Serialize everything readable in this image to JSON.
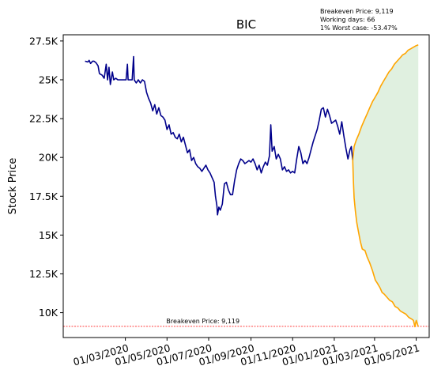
{
  "chart_data": {
    "type": "line",
    "title": "BIC",
    "ylabel": "Stock Price",
    "xlabel": "",
    "ylim": [
      8400,
      27900
    ],
    "xlim": [
      "2019-12-01",
      "2021-05-20"
    ],
    "yticks": [
      10000,
      12500,
      15000,
      17500,
      20000,
      22500,
      25000,
      27500
    ],
    "ytick_labels": [
      "10K",
      "12.5K",
      "15K",
      "17.5K",
      "20K",
      "22.5K",
      "25K",
      "27.5K"
    ],
    "xticks": [
      "2020-03-01",
      "2020-05-01",
      "2020-07-01",
      "2020-09-01",
      "2020-11-01",
      "2021-01-01",
      "2021-03-01",
      "2021-05-01"
    ],
    "xtick_labels": [
      "01/03/2020",
      "01/05/2020",
      "01/07/2020",
      "01/09/2020",
      "01/11/2020",
      "01/01/2021",
      "01/03/2021",
      "01/05/2021"
    ],
    "info_lines": [
      "Breakeven Price: 9,119",
      "Working days: 66",
      "1% Worst case: -53.47%"
    ],
    "breakeven": {
      "value": 9119,
      "label": "Breakeven Price: 9,119",
      "color": "#ff0000"
    },
    "colors": {
      "history": "#00008b",
      "projection": "#ffa500",
      "band": "#d8ecd8"
    },
    "series": [
      {
        "role": "history",
        "points": [
          [
            "2020-01-02",
            26200
          ],
          [
            "2020-01-06",
            26150
          ],
          [
            "2020-01-08",
            26250
          ],
          [
            "2020-01-10",
            26050
          ],
          [
            "2020-01-13",
            26200
          ],
          [
            "2020-01-15",
            26200
          ],
          [
            "2020-01-18",
            26100
          ],
          [
            "2020-01-21",
            25900
          ],
          [
            "2020-01-23",
            25400
          ],
          [
            "2020-01-27",
            25300
          ],
          [
            "2020-01-30",
            25100
          ],
          [
            "2020-02-02",
            26000
          ],
          [
            "2020-02-04",
            25000
          ],
          [
            "2020-02-06",
            25800
          ],
          [
            "2020-02-08",
            24700
          ],
          [
            "2020-02-11",
            25500
          ],
          [
            "2020-02-13",
            25000
          ],
          [
            "2020-02-16",
            25100
          ],
          [
            "2020-02-19",
            25000
          ],
          [
            "2020-02-23",
            25000
          ],
          [
            "2020-02-27",
            25000
          ],
          [
            "2020-03-02",
            25000
          ],
          [
            "2020-03-04",
            26000
          ],
          [
            "2020-03-05",
            25000
          ],
          [
            "2020-03-08",
            25000
          ],
          [
            "2020-03-11",
            25000
          ],
          [
            "2020-03-13",
            26500
          ],
          [
            "2020-03-14",
            25000
          ],
          [
            "2020-03-17",
            24800
          ],
          [
            "2020-03-20",
            25000
          ],
          [
            "2020-03-23",
            24800
          ],
          [
            "2020-03-26",
            25000
          ],
          [
            "2020-03-29",
            24900
          ],
          [
            "2020-04-01",
            24200
          ],
          [
            "2020-04-04",
            23800
          ],
          [
            "2020-04-07",
            23500
          ],
          [
            "2020-04-10",
            23000
          ],
          [
            "2020-04-13",
            23400
          ],
          [
            "2020-04-16",
            22800
          ],
          [
            "2020-04-19",
            23200
          ],
          [
            "2020-04-22",
            22700
          ],
          [
            "2020-04-25",
            22600
          ],
          [
            "2020-04-28",
            22400
          ],
          [
            "2020-05-01",
            21800
          ],
          [
            "2020-05-04",
            22100
          ],
          [
            "2020-05-07",
            21500
          ],
          [
            "2020-05-10",
            21600
          ],
          [
            "2020-05-13",
            21300
          ],
          [
            "2020-05-16",
            21200
          ],
          [
            "2020-05-19",
            21500
          ],
          [
            "2020-05-22",
            21000
          ],
          [
            "2020-05-25",
            21300
          ],
          [
            "2020-05-28",
            20800
          ],
          [
            "2020-05-31",
            20300
          ],
          [
            "2020-06-03",
            20500
          ],
          [
            "2020-06-06",
            19800
          ],
          [
            "2020-06-09",
            20000
          ],
          [
            "2020-06-12",
            19600
          ],
          [
            "2020-06-15",
            19400
          ],
          [
            "2020-06-18",
            19300
          ],
          [
            "2020-06-21",
            19100
          ],
          [
            "2020-06-24",
            19300
          ],
          [
            "2020-06-27",
            19500
          ],
          [
            "2020-06-30",
            19200
          ],
          [
            "2020-07-03",
            19000
          ],
          [
            "2020-07-06",
            18700
          ],
          [
            "2020-07-09",
            18400
          ],
          [
            "2020-07-11",
            17500
          ],
          [
            "2020-07-13",
            16900
          ],
          [
            "2020-07-14",
            16300
          ],
          [
            "2020-07-16",
            16800
          ],
          [
            "2020-07-18",
            16600
          ],
          [
            "2020-07-21",
            17000
          ],
          [
            "2020-07-24",
            18300
          ],
          [
            "2020-07-27",
            18400
          ],
          [
            "2020-07-30",
            17900
          ],
          [
            "2020-08-02",
            17600
          ],
          [
            "2020-08-05",
            17600
          ],
          [
            "2020-08-08",
            18500
          ],
          [
            "2020-08-11",
            19200
          ],
          [
            "2020-08-14",
            19600
          ],
          [
            "2020-08-17",
            19900
          ],
          [
            "2020-08-20",
            19800
          ],
          [
            "2020-08-23",
            19600
          ],
          [
            "2020-08-26",
            19700
          ],
          [
            "2020-08-29",
            19800
          ],
          [
            "2020-09-01",
            19700
          ],
          [
            "2020-09-04",
            19900
          ],
          [
            "2020-09-07",
            19600
          ],
          [
            "2020-09-10",
            19200
          ],
          [
            "2020-09-13",
            19500
          ],
          [
            "2020-09-16",
            19000
          ],
          [
            "2020-09-19",
            19400
          ],
          [
            "2020-09-22",
            19700
          ],
          [
            "2020-09-25",
            19500
          ],
          [
            "2020-09-28",
            20100
          ],
          [
            "2020-09-30",
            22100
          ],
          [
            "2020-10-02",
            20400
          ],
          [
            "2020-10-05",
            20700
          ],
          [
            "2020-10-08",
            19900
          ],
          [
            "2020-10-11",
            20200
          ],
          [
            "2020-10-14",
            19900
          ],
          [
            "2020-10-17",
            19200
          ],
          [
            "2020-10-20",
            19400
          ],
          [
            "2020-10-23",
            19100
          ],
          [
            "2020-10-26",
            19200
          ],
          [
            "2020-10-29",
            19000
          ],
          [
            "2020-11-01",
            19100
          ],
          [
            "2020-11-04",
            19000
          ],
          [
            "2020-11-07",
            19900
          ],
          [
            "2020-11-10",
            20700
          ],
          [
            "2020-11-13",
            20300
          ],
          [
            "2020-11-16",
            19600
          ],
          [
            "2020-11-19",
            19800
          ],
          [
            "2020-11-22",
            19600
          ],
          [
            "2020-11-25",
            20000
          ],
          [
            "2020-11-28",
            20500
          ],
          [
            "2020-12-01",
            21000
          ],
          [
            "2020-12-04",
            21400
          ],
          [
            "2020-12-07",
            21800
          ],
          [
            "2020-12-10",
            22400
          ],
          [
            "2020-12-13",
            23100
          ],
          [
            "2020-12-16",
            23200
          ],
          [
            "2020-12-19",
            22600
          ],
          [
            "2020-12-22",
            23100
          ],
          [
            "2020-12-25",
            22700
          ],
          [
            "2020-12-28",
            22200
          ],
          [
            "2020-12-31",
            22300
          ],
          [
            "2021-01-03",
            22400
          ],
          [
            "2021-01-06",
            22000
          ],
          [
            "2021-01-09",
            21500
          ],
          [
            "2021-01-12",
            22300
          ],
          [
            "2021-01-15",
            21400
          ],
          [
            "2021-01-18",
            20600
          ],
          [
            "2021-01-21",
            19900
          ],
          [
            "2021-01-24",
            20500
          ],
          [
            "2021-01-26",
            20700
          ],
          [
            "2021-01-28",
            19800
          ]
        ]
      },
      {
        "role": "upper-projection",
        "points": [
          [
            "2021-01-28",
            19800
          ],
          [
            "2021-01-30",
            20700
          ],
          [
            "2021-02-02",
            21100
          ],
          [
            "2021-02-06",
            21500
          ],
          [
            "2021-02-10",
            22000
          ],
          [
            "2021-02-14",
            22400
          ],
          [
            "2021-02-18",
            22800
          ],
          [
            "2021-02-22",
            23200
          ],
          [
            "2021-02-26",
            23600
          ],
          [
            "2021-03-02",
            23900
          ],
          [
            "2021-03-06",
            24200
          ],
          [
            "2021-03-10",
            24600
          ],
          [
            "2021-03-14",
            24900
          ],
          [
            "2021-03-18",
            25200
          ],
          [
            "2021-03-22",
            25500
          ],
          [
            "2021-03-26",
            25700
          ],
          [
            "2021-03-30",
            26000
          ],
          [
            "2021-04-03",
            26200
          ],
          [
            "2021-04-07",
            26400
          ],
          [
            "2021-04-11",
            26600
          ],
          [
            "2021-04-15",
            26700
          ],
          [
            "2021-04-19",
            26900
          ],
          [
            "2021-04-23",
            27000
          ],
          [
            "2021-04-27",
            27100
          ],
          [
            "2021-05-01",
            27200
          ],
          [
            "2021-05-04",
            27250
          ]
        ]
      },
      {
        "role": "lower-projection",
        "points": [
          [
            "2021-01-28",
            19800
          ],
          [
            "2021-01-29",
            18500
          ],
          [
            "2021-01-30",
            17400
          ],
          [
            "2021-02-01",
            16500
          ],
          [
            "2021-02-03",
            15800
          ],
          [
            "2021-02-05",
            15300
          ],
          [
            "2021-02-08",
            14600
          ],
          [
            "2021-02-11",
            14100
          ],
          [
            "2021-02-15",
            14000
          ],
          [
            "2021-02-18",
            13600
          ],
          [
            "2021-02-22",
            13200
          ],
          [
            "2021-02-26",
            12700
          ],
          [
            "2021-03-02",
            12100
          ],
          [
            "2021-03-05",
            11900
          ],
          [
            "2021-03-09",
            11600
          ],
          [
            "2021-03-12",
            11300
          ],
          [
            "2021-03-15",
            11200
          ],
          [
            "2021-03-19",
            11000
          ],
          [
            "2021-03-23",
            10800
          ],
          [
            "2021-03-27",
            10700
          ],
          [
            "2021-03-31",
            10400
          ],
          [
            "2021-04-04",
            10300
          ],
          [
            "2021-04-08",
            10100
          ],
          [
            "2021-04-12",
            10000
          ],
          [
            "2021-04-16",
            9900
          ],
          [
            "2021-04-20",
            9700
          ],
          [
            "2021-04-24",
            9600
          ],
          [
            "2021-04-27",
            9500
          ],
          [
            "2021-04-29",
            9100
          ],
          [
            "2021-05-01",
            9500
          ],
          [
            "2021-05-04",
            9100
          ]
        ]
      }
    ]
  }
}
